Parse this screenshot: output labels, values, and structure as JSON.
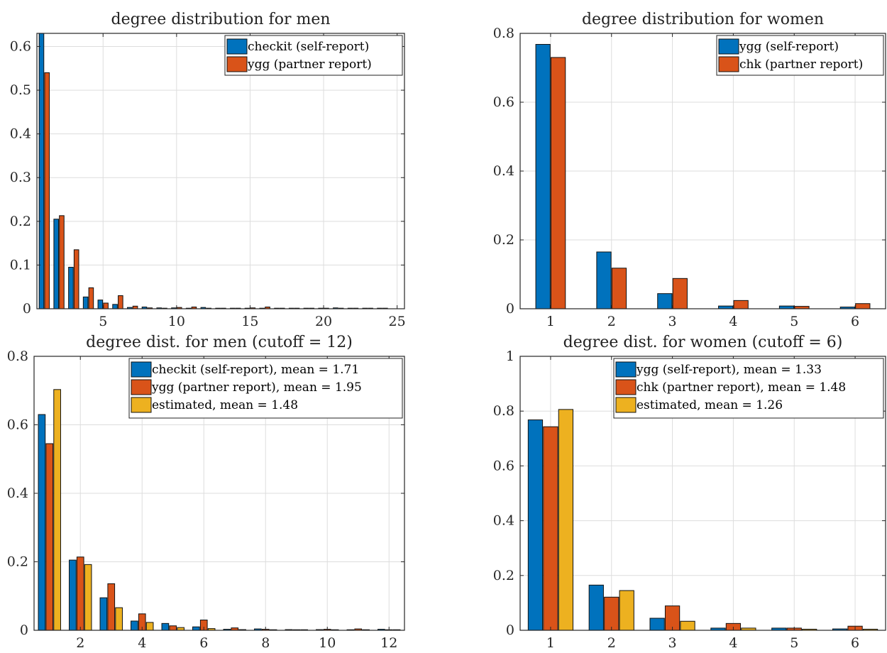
{
  "colors": {
    "blue": "#0072BD",
    "orange": "#D95319",
    "yellow": "#EDB120"
  },
  "chart_data": [
    {
      "type": "bar",
      "title": "degree distribution for men",
      "x": [
        1,
        2,
        3,
        4,
        5,
        6,
        7,
        8,
        9,
        10,
        11,
        12,
        13,
        14,
        15,
        16,
        17,
        18,
        19,
        20,
        21,
        22,
        23,
        24
      ],
      "series": [
        {
          "name": "checkit (self-report)",
          "color": "#0072BD",
          "values": [
            0.63,
            0.205,
            0.095,
            0.027,
            0.02,
            0.01,
            0.003,
            0.004,
            0.002,
            0.002,
            0.001,
            0.003,
            0.001,
            0.001,
            0.001,
            0.001,
            0.001,
            0.001,
            0.001,
            0.001,
            0.002,
            0.001,
            0.001,
            0.001
          ]
        },
        {
          "name": "ygg (partner report)",
          "color": "#D95319",
          "values": [
            0.54,
            0.213,
            0.135,
            0.048,
            0.013,
            0.03,
            0.006,
            0.002,
            0.001,
            0.003,
            0.004,
            0.001,
            0.001,
            0.001,
            0.002,
            0.004,
            0.001,
            0.001,
            0.001,
            0.001,
            0.001,
            0.001,
            0.001,
            0.001
          ]
        }
      ],
      "xticks": [
        5,
        10,
        15,
        20,
        25
      ],
      "yticks": [
        0,
        0.1,
        0.2,
        0.3,
        0.4,
        0.5,
        0.6
      ],
      "xticklabels": [
        "5",
        "10",
        "15",
        "20",
        "25"
      ],
      "yticklabels": [
        "0",
        "0.1",
        "0.2",
        "0.3",
        "0.4",
        "0.5",
        "0.6"
      ],
      "xlim": [
        0.5,
        25.5
      ],
      "ylim": [
        0,
        0.63
      ],
      "grid": true,
      "legend": "top-right"
    },
    {
      "type": "bar",
      "title": "degree distribution for women",
      "x": [
        1,
        2,
        3,
        4,
        5,
        6
      ],
      "series": [
        {
          "name": "ygg (self-report)",
          "color": "#0072BD",
          "values": [
            0.768,
            0.165,
            0.044,
            0.008,
            0.008,
            0.005
          ]
        },
        {
          "name": "chk (partner report)",
          "color": "#D95319",
          "values": [
            0.73,
            0.118,
            0.088,
            0.024,
            0.007,
            0.015
          ]
        }
      ],
      "xticks": [
        1,
        2,
        3,
        4,
        5,
        6
      ],
      "yticks": [
        0,
        0.2,
        0.4,
        0.6,
        0.8
      ],
      "xticklabels": [
        "1",
        "2",
        "3",
        "4",
        "5",
        "6"
      ],
      "yticklabels": [
        "0",
        "0.2",
        "0.4",
        "0.6",
        "0.8"
      ],
      "xlim": [
        0.5,
        6.5
      ],
      "ylim": [
        0,
        0.8
      ],
      "grid": true,
      "legend": "top-right"
    },
    {
      "type": "bar",
      "title": "degree dist. for men (cutoff = 12)",
      "x": [
        1,
        2,
        3,
        4,
        5,
        6,
        7,
        8,
        9,
        10,
        11,
        12
      ],
      "series": [
        {
          "name": "checkit (self-report), mean = 1.71",
          "color": "#0072BD",
          "values": [
            0.63,
            0.205,
            0.095,
            0.027,
            0.02,
            0.01,
            0.003,
            0.004,
            0.002,
            0.002,
            0.001,
            0.003
          ]
        },
        {
          "name": "ygg (partner report), mean = 1.95",
          "color": "#D95319",
          "values": [
            0.545,
            0.214,
            0.136,
            0.048,
            0.013,
            0.03,
            0.007,
            0.003,
            0.001,
            0.003,
            0.004,
            0.001
          ]
        },
        {
          "name": "estimated, mean = 1.48",
          "color": "#EDB120",
          "values": [
            0.703,
            0.192,
            0.066,
            0.023,
            0.008,
            0.005,
            0.002,
            0.001,
            0.001,
            0.001,
            0.0005,
            0.0005
          ]
        }
      ],
      "xticks": [
        2,
        4,
        6,
        8,
        10,
        12
      ],
      "yticks": [
        0,
        0.2,
        0.4,
        0.6,
        0.8
      ],
      "xticklabels": [
        "2",
        "4",
        "6",
        "8",
        "10",
        "12"
      ],
      "yticklabels": [
        "0",
        "0.2",
        "0.4",
        "0.6",
        "0.8"
      ],
      "xlim": [
        0.5,
        12.5
      ],
      "ylim": [
        0,
        0.8
      ],
      "grid": true,
      "legend": "top-right"
    },
    {
      "type": "bar",
      "title": "degree dist. for women (cutoff = 6)",
      "x": [
        1,
        2,
        3,
        4,
        5,
        6
      ],
      "series": [
        {
          "name": "ygg (self-report), mean = 1.33",
          "color": "#0072BD",
          "values": [
            0.768,
            0.165,
            0.044,
            0.008,
            0.008,
            0.005
          ]
        },
        {
          "name": "chk (partner report), mean = 1.48",
          "color": "#D95319",
          "values": [
            0.743,
            0.121,
            0.089,
            0.025,
            0.008,
            0.015
          ]
        },
        {
          "name": "estimated, mean = 1.26",
          "color": "#EDB120",
          "values": [
            0.806,
            0.145,
            0.033,
            0.008,
            0.004,
            0.004
          ]
        }
      ],
      "xticks": [
        1,
        2,
        3,
        4,
        5,
        6
      ],
      "yticks": [
        0,
        0.2,
        0.4,
        0.6,
        0.8,
        1
      ],
      "xticklabels": [
        "1",
        "2",
        "3",
        "4",
        "5",
        "6"
      ],
      "yticklabels": [
        "0",
        "0.2",
        "0.4",
        "0.6",
        "0.8",
        "1"
      ],
      "xlim": [
        0.5,
        6.5
      ],
      "ylim": [
        0,
        1
      ],
      "grid": true,
      "legend": "top-right"
    }
  ]
}
